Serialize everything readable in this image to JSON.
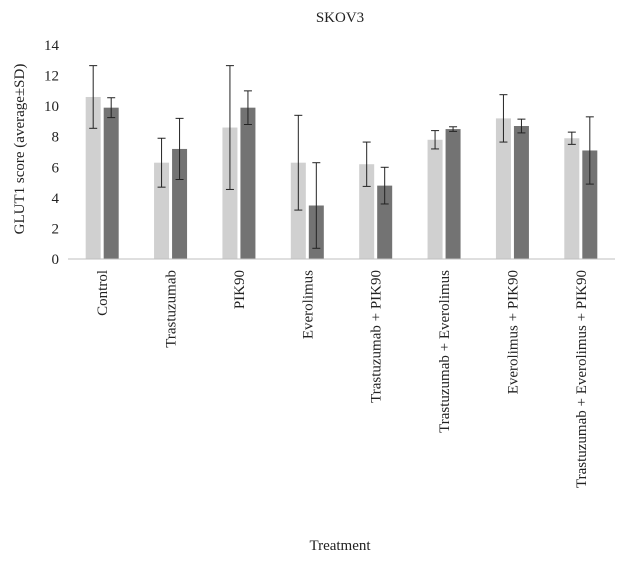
{
  "chart_data": {
    "type": "bar",
    "title": "SKOV3",
    "xlabel": "Treatment",
    "ylabel": "GLUT1 score (average±SD)",
    "ylim": [
      0,
      14
    ],
    "yticks": [
      0,
      2,
      4,
      6,
      8,
      10,
      12,
      14
    ],
    "grid": false,
    "categories": [
      "Control",
      "Trastuzumab",
      "PIK90",
      "Everolimus",
      "Trastuzumab + PIK90",
      "Trastuzumab + Everolimus",
      "Everolimus + PIK90",
      "Trastuzumab + Everolimus + PIK90"
    ],
    "series": [
      {
        "color": "#d0d0d0",
        "values": [
          10.6,
          6.3,
          8.6,
          6.3,
          6.2,
          7.8,
          9.2,
          7.9
        ],
        "error": [
          2.05,
          1.6,
          4.05,
          3.1,
          1.45,
          0.6,
          1.55,
          0.4
        ]
      },
      {
        "color": "#737373",
        "values": [
          9.9,
          7.2,
          9.9,
          3.5,
          4.8,
          8.5,
          8.7,
          7.1
        ],
        "error": [
          0.65,
          2.0,
          1.1,
          2.8,
          1.2,
          0.15,
          0.45,
          2.2
        ]
      }
    ]
  }
}
